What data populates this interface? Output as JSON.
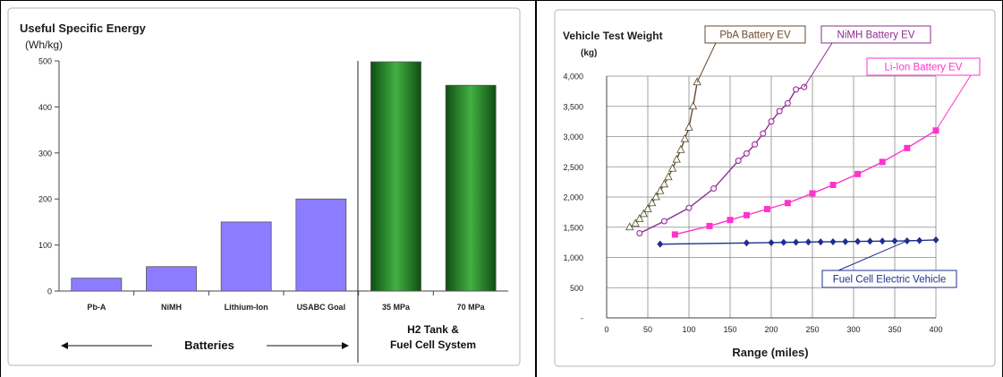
{
  "chart_data": [
    {
      "type": "bar",
      "title": "Useful Specific Energy",
      "ylabel": "(Wh/kg)",
      "ylim": [
        0,
        500
      ],
      "yticks": [
        "500",
        "400",
        "300",
        "200",
        "100",
        "0"
      ],
      "categories": [
        "Pb-A",
        "NiMH",
        "Lithium-Ion",
        "USABC Goal",
        "35 MPa",
        "70 MPa"
      ],
      "values": [
        28,
        53,
        150,
        200,
        498,
        447
      ],
      "bar_colors": [
        "#8c7cff",
        "#8c7cff",
        "#8c7cff",
        "#8c7cff",
        "#2f8f2f",
        "#2f8f2f"
      ],
      "groups": [
        {
          "label": "Batteries",
          "categories": [
            "Pb-A",
            "NiMH",
            "Lithium-Ion",
            "USABC Goal"
          ]
        },
        {
          "label_lines": [
            "H2 Tank &",
            "Fuel Cell System"
          ],
          "categories": [
            "35 MPa",
            "70 MPa"
          ]
        }
      ],
      "grid": false
    },
    {
      "type": "line",
      "title": "Vehicle Test Weight",
      "ylabel": "(kg)",
      "xlabel": "Range (miles)",
      "xlim": [
        0,
        400
      ],
      "ylim": [
        0,
        4000
      ],
      "xticks": [
        "0",
        "50",
        "100",
        "150",
        "200",
        "250",
        "300",
        "350",
        "400"
      ],
      "yticks": [
        "4,000",
        "3,500",
        "3,000",
        "2,500",
        "2,000",
        "1,500",
        "1,000",
        "500",
        "-"
      ],
      "grid": true,
      "series": [
        {
          "name": "PbA Battery EV",
          "color": "#6b4a2a",
          "marker": "triangle",
          "x": [
            28,
            35,
            40,
            45,
            50,
            55,
            60,
            65,
            70,
            75,
            80,
            85,
            90,
            95,
            100,
            105,
            110
          ],
          "y": [
            1500,
            1560,
            1640,
            1720,
            1800,
            1900,
            2000,
            2100,
            2210,
            2330,
            2470,
            2620,
            2780,
            2960,
            3150,
            3500,
            3900
          ]
        },
        {
          "name": "NiMH Battery EV",
          "color": "#8e2d8e",
          "marker": "circle",
          "x": [
            40,
            70,
            100,
            130,
            160,
            170,
            180,
            190,
            200,
            210,
            220,
            230,
            240
          ],
          "y": [
            1400,
            1600,
            1820,
            2140,
            2600,
            2720,
            2870,
            3050,
            3250,
            3420,
            3550,
            3780,
            3820
          ]
        },
        {
          "name": "Li-Ion Battery EV",
          "color": "#ff33cc",
          "marker": "square",
          "x": [
            83,
            125,
            150,
            170,
            195,
            220,
            250,
            275,
            305,
            335,
            365,
            400
          ],
          "y": [
            1380,
            1520,
            1620,
            1700,
            1800,
            1900,
            2060,
            2200,
            2380,
            2580,
            2810,
            3100
          ]
        },
        {
          "name": "Fuel Cell Electric Vehicle",
          "color": "#1f2f8f",
          "marker": "diamond",
          "x": [
            65,
            170,
            200,
            215,
            230,
            245,
            260,
            275,
            290,
            305,
            320,
            335,
            350,
            365,
            380,
            400
          ],
          "y": [
            1220,
            1240,
            1245,
            1250,
            1252,
            1255,
            1258,
            1260,
            1262,
            1265,
            1268,
            1270,
            1272,
            1275,
            1280,
            1290
          ]
        }
      ]
    }
  ]
}
